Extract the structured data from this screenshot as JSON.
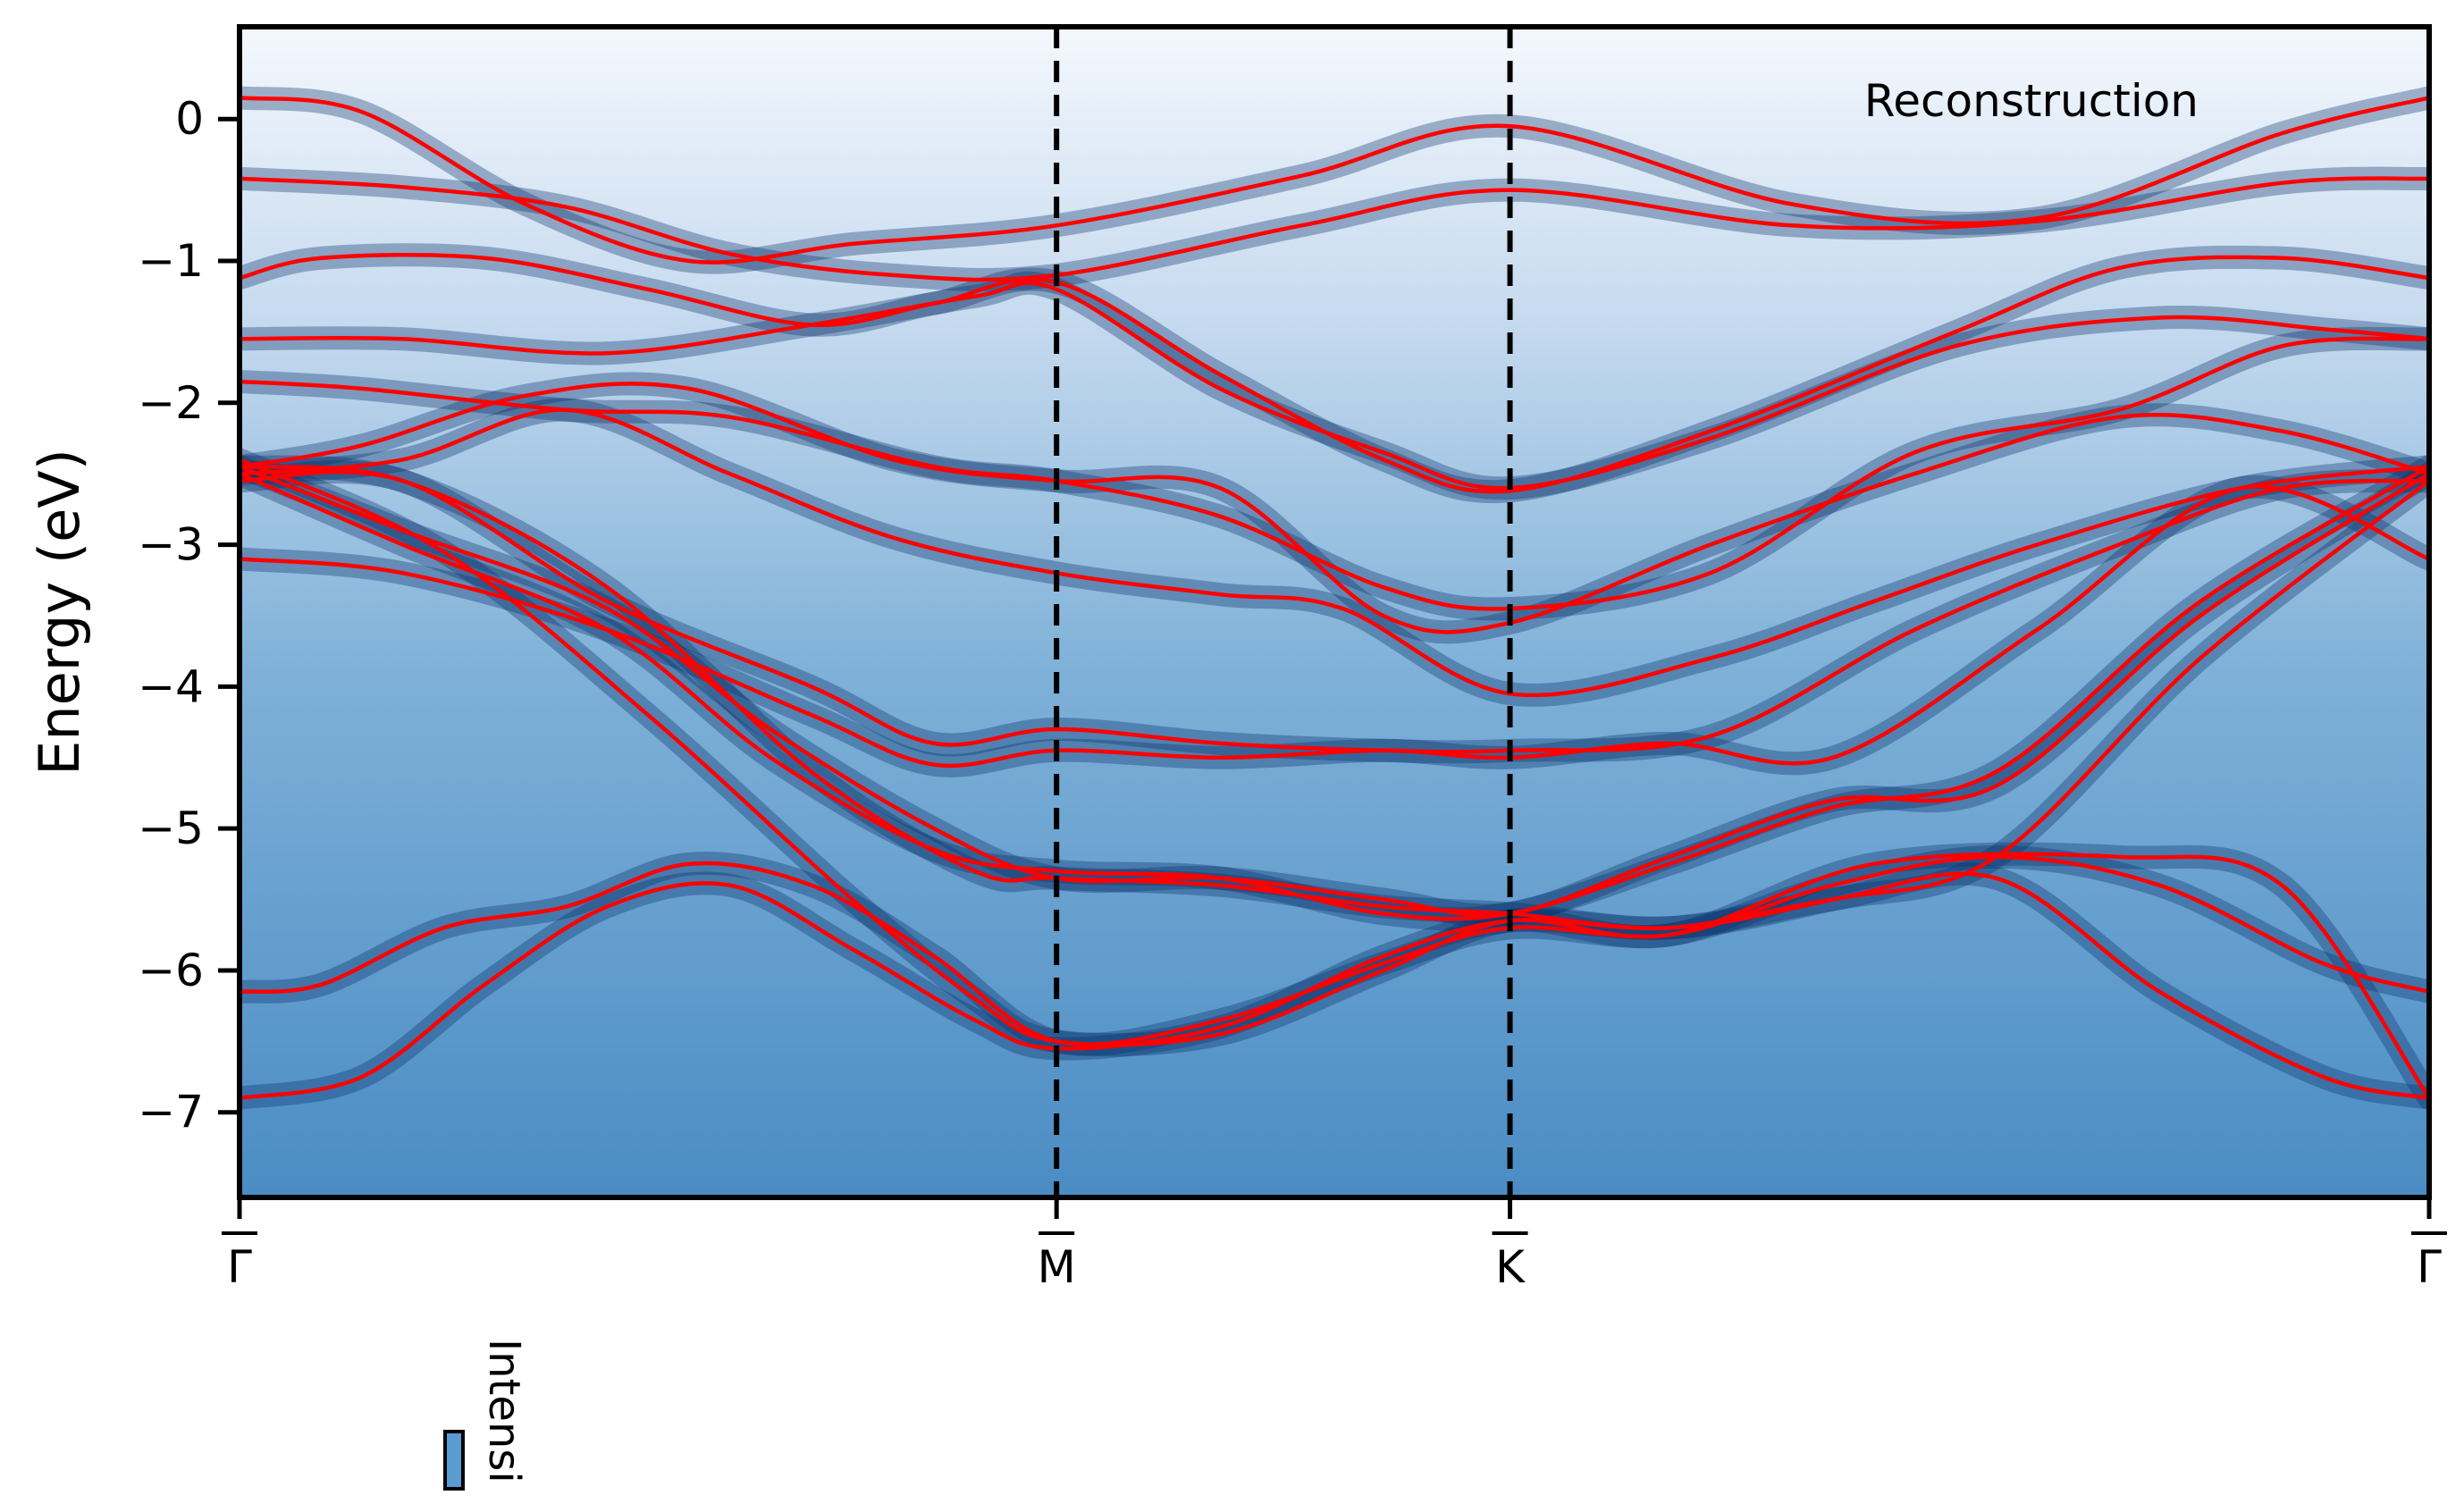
{
  "chart_data": {
    "type": "line",
    "title": "",
    "xlabel": "",
    "ylabel": "Energy (eV)",
    "ylim": [
      -7.6,
      0.65
    ],
    "y_ticks": [
      0,
      -1,
      -2,
      -3,
      -4,
      -5,
      -6,
      -7
    ],
    "y_tick_labels": [
      "0",
      "−1",
      "−2",
      "−3",
      "−4",
      "−5",
      "−6",
      "−7"
    ],
    "x_path": [
      {
        "label": "Γ",
        "pos": 0.0
      },
      {
        "label": "M",
        "pos": 1.0
      },
      {
        "label": "K",
        "pos": 1.555
      },
      {
        "label": "Γ",
        "pos": 2.68
      }
    ],
    "xlim": [
      0,
      2.68
    ],
    "background": "ARPES intensity map (Blues colormap)",
    "annotation": "Reconstruction",
    "colorbar_label": "Intensi",
    "grid": false,
    "band_color": "#ff0000",
    "divider_color": "#000000",
    "series": [
      {
        "x": [
          0,
          0.15,
          0.35,
          0.55,
          0.75,
          1.0,
          1.3,
          1.555,
          1.9,
          2.2,
          2.5,
          2.68
        ],
        "values": [
          0.15,
          0.05,
          -0.6,
          -1.0,
          -0.88,
          -0.75,
          -0.4,
          -0.05,
          -0.6,
          -0.7,
          -0.1,
          0.15
        ]
      },
      {
        "x": [
          0,
          0.2,
          0.4,
          0.6,
          0.8,
          1.0,
          1.3,
          1.555,
          1.9,
          2.2,
          2.5,
          2.68
        ],
        "values": [
          -0.42,
          -0.48,
          -0.62,
          -0.95,
          -1.1,
          -1.1,
          -0.75,
          -0.5,
          -0.75,
          -0.72,
          -0.45,
          -0.42
        ]
      },
      {
        "x": [
          0,
          0.1,
          0.3,
          0.5,
          0.7,
          0.85,
          1.0,
          1.2,
          1.4,
          1.555,
          1.8,
          2.1,
          2.3,
          2.5,
          2.68
        ],
        "values": [
          -1.12,
          -0.98,
          -0.98,
          -1.2,
          -1.45,
          -1.3,
          -1.15,
          -1.8,
          -2.4,
          -2.62,
          -2.2,
          -1.5,
          -1.05,
          -0.98,
          -1.12
        ]
      },
      {
        "x": [
          0,
          0.2,
          0.45,
          0.7,
          0.9,
          1.0,
          1.2,
          1.4,
          1.555,
          1.8,
          2.1,
          2.35,
          2.55,
          2.68
        ],
        "values": [
          -1.55,
          -1.55,
          -1.65,
          -1.45,
          -1.25,
          -1.2,
          -1.9,
          -2.35,
          -2.6,
          -2.25,
          -1.6,
          -1.4,
          -1.48,
          -1.55
        ]
      },
      {
        "x": [
          0,
          0.15,
          0.4,
          0.6,
          0.85,
          1.0,
          1.2,
          1.4,
          1.555,
          1.8,
          2.05,
          2.3,
          2.5,
          2.68
        ],
        "values": [
          -1.85,
          -1.9,
          -2.05,
          -2.1,
          -2.45,
          -2.55,
          -2.8,
          -3.3,
          -3.45,
          -3.2,
          -2.35,
          -2.05,
          -1.6,
          -1.55
        ]
      },
      {
        "x": [
          0,
          0.15,
          0.35,
          0.55,
          0.8,
          1.0,
          1.2,
          1.4,
          1.555,
          1.8,
          2.05,
          2.3,
          2.5,
          2.68
        ],
        "values": [
          -2.45,
          -2.3,
          -1.95,
          -1.9,
          -2.4,
          -2.55,
          -2.6,
          -3.5,
          -3.55,
          -3.0,
          -2.5,
          -2.1,
          -2.2,
          -2.5
        ]
      },
      {
        "x": [
          0,
          0.2,
          0.4,
          0.6,
          0.8,
          1.0,
          1.2,
          1.35,
          1.555,
          1.8,
          2.0,
          2.2,
          2.45,
          2.68
        ],
        "values": [
          -2.5,
          -2.4,
          -2.05,
          -2.5,
          -2.95,
          -3.2,
          -3.35,
          -3.45,
          -4.05,
          -3.8,
          -3.4,
          -3.0,
          -2.6,
          -2.45
        ]
      },
      {
        "x": [
          0,
          0.2,
          0.45,
          0.7,
          0.85,
          1.0,
          1.2,
          1.4,
          1.555,
          1.8,
          2.05,
          2.3,
          2.5,
          2.68
        ],
        "values": [
          -2.55,
          -2.55,
          -3.4,
          -4.0,
          -4.4,
          -4.3,
          -4.4,
          -4.45,
          -4.45,
          -4.35,
          -3.6,
          -3.0,
          -2.6,
          -2.55
        ]
      },
      {
        "x": [
          0,
          0.2,
          0.45,
          0.7,
          0.85,
          1.0,
          1.2,
          1.4,
          1.555,
          1.75,
          1.95,
          2.2,
          2.45,
          2.68
        ],
        "values": [
          -3.1,
          -3.2,
          -3.6,
          -4.2,
          -4.55,
          -4.45,
          -4.5,
          -4.45,
          -4.5,
          -4.4,
          -4.5,
          -3.6,
          -2.6,
          -3.1
        ]
      },
      {
        "x": [
          0,
          0.2,
          0.45,
          0.65,
          0.85,
          1.0,
          1.2,
          1.4,
          1.555,
          1.75,
          1.95,
          2.15,
          2.4,
          2.68
        ],
        "values": [
          -2.45,
          -2.9,
          -3.45,
          -4.3,
          -5.0,
          -5.35,
          -5.35,
          -5.5,
          -5.6,
          -5.2,
          -4.8,
          -4.7,
          -3.5,
          -2.5
        ]
      },
      {
        "x": [
          0,
          0.2,
          0.45,
          0.65,
          0.85,
          1.0,
          1.2,
          1.4,
          1.555,
          1.75,
          1.95,
          2.15,
          2.4,
          2.68
        ],
        "values": [
          -2.5,
          -3.0,
          -3.6,
          -4.5,
          -5.15,
          -5.3,
          -5.35,
          -5.6,
          -5.6,
          -5.25,
          -4.85,
          -4.6,
          -3.4,
          -2.45
        ]
      },
      {
        "x": [
          0,
          0.1,
          0.25,
          0.4,
          0.55,
          0.7,
          0.85,
          1.0,
          1.2,
          1.4,
          1.555,
          1.75,
          1.95,
          2.15,
          2.35,
          2.55,
          2.68
        ],
        "values": [
          -6.15,
          -6.1,
          -5.7,
          -5.55,
          -5.25,
          -5.4,
          -5.9,
          -6.5,
          -6.35,
          -5.95,
          -5.7,
          -5.75,
          -5.4,
          -5.2,
          -5.4,
          -5.95,
          -6.15
        ]
      },
      {
        "x": [
          0,
          0.15,
          0.3,
          0.45,
          0.6,
          0.75,
          0.9,
          1.0,
          1.2,
          1.4,
          1.555,
          1.75,
          1.95,
          2.15,
          2.35,
          2.55,
          2.68
        ],
        "values": [
          -6.9,
          -6.75,
          -6.1,
          -5.55,
          -5.4,
          -5.85,
          -6.35,
          -6.55,
          -6.4,
          -5.9,
          -5.65,
          -5.7,
          -5.5,
          -5.35,
          -6.15,
          -6.75,
          -6.9
        ]
      },
      {
        "x": [
          0,
          0.2,
          0.45,
          0.7,
          0.9,
          1.0,
          1.2,
          1.4,
          1.555,
          1.75,
          1.95,
          2.15,
          2.4,
          2.68
        ],
        "values": [
          -2.45,
          -2.55,
          -3.3,
          -4.6,
          -5.3,
          -5.35,
          -5.4,
          -5.55,
          -5.6,
          -5.7,
          -5.5,
          -5.2,
          -3.8,
          -2.55
        ]
      },
      {
        "x": [
          0,
          0.25,
          0.5,
          0.75,
          0.9,
          1.0,
          1.2,
          1.4,
          1.555,
          1.75,
          2.0,
          2.3,
          2.5,
          2.68
        ],
        "values": [
          -2.4,
          -3.05,
          -4.2,
          -5.5,
          -6.2,
          -6.5,
          -6.45,
          -6.0,
          -5.65,
          -5.75,
          -5.25,
          -5.2,
          -5.4,
          -6.9
        ]
      }
    ]
  }
}
